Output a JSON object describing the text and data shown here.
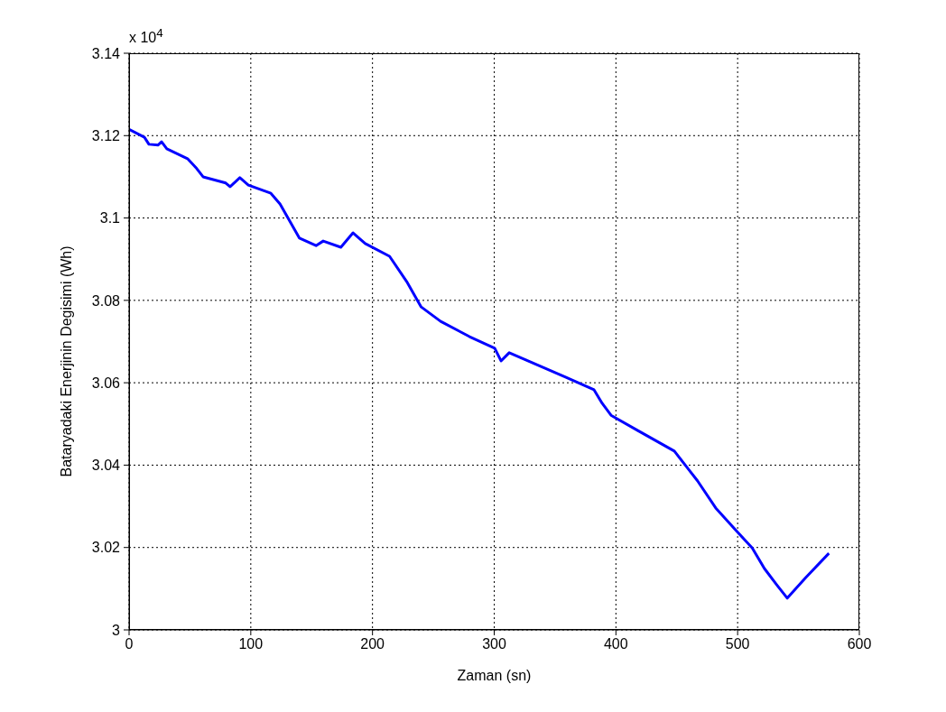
{
  "chart_data": {
    "type": "line",
    "xlabel": "Zaman (sn)",
    "ylabel": "Bataryadaki Enerjinin Degisimi (Wh)",
    "annotations": [
      "x 10$^{4}$"
    ],
    "xlim": [
      0,
      600
    ],
    "xticks": [
      0,
      100,
      200,
      300,
      400,
      500,
      600
    ],
    "ylim": [
      3,
      3.14
    ],
    "yticks": [
      3,
      3.02,
      3.04,
      3.06,
      3.08,
      3.1,
      3.12,
      3.14
    ],
    "grid": true,
    "line_style": "solid",
    "series": [
      {
        "color": "#0000ff",
        "x": [
          0,
          12.6,
          16.3,
          23.7,
          26.7,
          31,
          48,
          55.6,
          60.8,
          79.4,
          83,
          91,
          98,
          116.5,
          124,
          140,
          153.6,
          159.5,
          174,
          184,
          194,
          214,
          228,
          240,
          256,
          279.7,
          300.4,
          305.6,
          312.3,
          359,
          382,
          388.7,
          396,
          418,
          448,
          467,
          482,
          500,
          512,
          522,
          532,
          540.8,
          556,
          575
        ],
        "values": [
          3.1215,
          3.1196,
          3.1179,
          3.1177,
          3.1185,
          3.1168,
          3.1144,
          3.112,
          3.11,
          3.1085,
          3.1076,
          3.1098,
          3.108,
          3.106,
          3.1034,
          3.0951,
          3.0933,
          3.0944,
          3.0929,
          3.0964,
          3.0938,
          3.0907,
          3.0846,
          3.0784,
          3.0749,
          3.0712,
          3.0684,
          3.0653,
          3.0673,
          3.0613,
          3.0583,
          3.055,
          3.0521,
          3.0484,
          3.0434,
          3.0362,
          3.0296,
          3.0237,
          3.0199,
          3.0149,
          3.011,
          3.0077,
          3.0127,
          3.0186
        ]
      }
    ]
  }
}
